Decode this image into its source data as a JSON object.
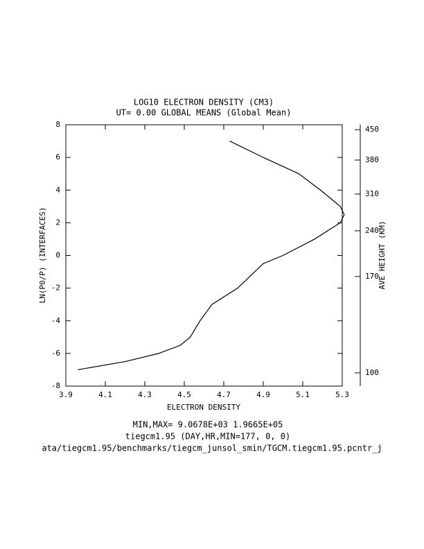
{
  "chart_data": {
    "type": "line",
    "title": "LOG10 ELECTRON DENSITY (CM3)",
    "subtitle": "UT= 0.00 GLOBAL MEANS (Global Mean)",
    "x_label": "ELECTRON DENSITY",
    "y_label": "LN(P0/P) (INTERFACES)",
    "y2_label": "AVE HEIGHT (KM)",
    "footer": [
      "MIN,MAX=  9.0678E+03  1.9665E+05",
      "tiegcm1.95 (DAY,HR,MIN=177, 0, 0)",
      "ata/tiegcm1.95/benchmarks/tiegcm_junsol_smin/TGCM.tiegcm1.95.pcntr_j"
    ],
    "x": [
      3.96,
      4.2,
      4.37,
      4.48,
      4.53,
      4.58,
      4.64,
      4.77,
      4.9,
      5.0,
      5.16,
      5.29,
      5.31,
      5.29,
      5.19,
      5.08,
      4.9,
      4.73
    ],
    "series": [
      {
        "name": "ELECTRON DENSITY",
        "color": "#000000",
        "values": [
          -7,
          -6.5,
          -6,
          -5.5,
          -5,
          -4,
          -3,
          -2,
          -0.5,
          0,
          1,
          2,
          2.5,
          3,
          4,
          5,
          6,
          7
        ]
      }
    ],
    "xlim": [
      3.9,
      5.3
    ],
    "xticks": [
      3.9,
      4.1,
      4.3,
      4.5,
      4.7,
      4.9,
      5.1,
      5.3
    ],
    "ylim": [
      -8,
      8
    ],
    "yticks": [
      -8,
      -6,
      -4,
      -2,
      0,
      2,
      4,
      6,
      8
    ],
    "height_axis": {
      "heights": [
        100,
        170,
        240,
        310,
        380,
        450
      ],
      "levels": [
        -7.19,
        -1.29,
        1.51,
        3.76,
        5.84,
        7.7
      ]
    }
  }
}
